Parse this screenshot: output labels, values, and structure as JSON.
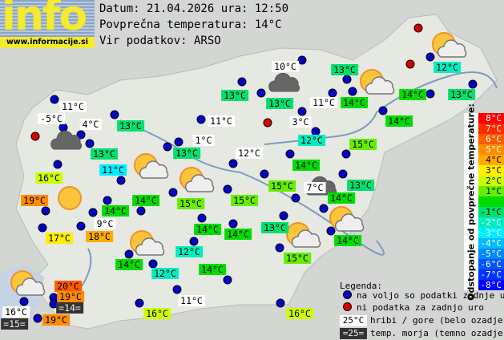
{
  "logo": {
    "word": "info",
    "url": "www.informacije.si"
  },
  "header": {
    "date_line": "Datum: 21.04.2026 ura: 12:50",
    "avg_temp_line": "Povprečna temperatura: 14°C",
    "source_line": "Vir podatkov: ARSO"
  },
  "average_temperature": 14,
  "scale": {
    "title": "Odstopanje od povprečne temperature:",
    "rows": [
      {
        "label": "8°C",
        "color": "#ff0000"
      },
      {
        "label": "7°C",
        "color": "#ff2a00"
      },
      {
        "label": "6°C",
        "color": "#ff5a00"
      },
      {
        "label": "5°C",
        "color": "#ff8c00"
      },
      {
        "label": "4°C",
        "color": "#ffaa00"
      },
      {
        "label": "3°C",
        "color": "#ffee00"
      },
      {
        "label": "2°C",
        "color": "#ccff00"
      },
      {
        "label": "1°C",
        "color": "#66ee00"
      },
      {
        "label": "",
        "color": "#00dd00"
      },
      {
        "label": "-1°C",
        "color": "#00e070"
      },
      {
        "label": "-2°C",
        "color": "#00eec0"
      },
      {
        "label": "-3°C",
        "color": "#00eeff"
      },
      {
        "label": "-4°C",
        "color": "#00bbff"
      },
      {
        "label": "-5°C",
        "color": "#0088ff"
      },
      {
        "label": "-6°C",
        "color": "#0055ff"
      },
      {
        "label": "-7°C",
        "color": "#0033ff"
      },
      {
        "label": "-8°C",
        "color": "#0000ff"
      }
    ]
  },
  "legend": {
    "title": "Legenda:",
    "available": "na voljo so podatki zadnje ure",
    "missing": "ni podatka za zadnjo uro",
    "mountain_sample": "25°C",
    "mountain_text": "hribi / gore (belo ozadje)",
    "sea_sample": "=25=",
    "sea_text": "temp. morja (temno ozadje)",
    "available_color": "#0000cc",
    "missing_color": "#dd0000"
  },
  "stations": [
    {
      "text": "10°C",
      "type": "mountain"
    },
    {
      "text": "13°C",
      "type": "normal",
      "dev": -1
    },
    {
      "text": "12°C",
      "type": "normal",
      "dev": -2
    },
    {
      "text": "13°C",
      "type": "normal",
      "dev": -1
    },
    {
      "text": "13°C",
      "type": "normal",
      "dev": -1
    },
    {
      "text": "11°C",
      "type": "mountain"
    },
    {
      "text": "14°C",
      "type": "normal",
      "dev": 0
    },
    {
      "text": "14°C",
      "type": "normal",
      "dev": 0
    },
    {
      "text": "13°C",
      "type": "normal",
      "dev": -1
    },
    {
      "text": "11°C",
      "type": "mountain"
    },
    {
      "text": "-5°C",
      "type": "mountain"
    },
    {
      "text": "4°C",
      "type": "mountain"
    },
    {
      "text": "13°C",
      "type": "normal",
      "dev": -1
    },
    {
      "text": "11°C",
      "type": "mountain"
    },
    {
      "text": "3°C",
      "type": "mountain"
    },
    {
      "text": "14°C",
      "type": "normal",
      "dev": 0
    },
    {
      "text": "1°C",
      "type": "mountain"
    },
    {
      "text": "12°C",
      "type": "normal",
      "dev": -2
    },
    {
      "text": "15°C",
      "type": "normal",
      "dev": 1
    },
    {
      "text": "13°C",
      "type": "normal",
      "dev": -1
    },
    {
      "text": "13°C",
      "type": "normal",
      "dev": -1
    },
    {
      "text": "12°C",
      "type": "mountain"
    },
    {
      "text": "14°C",
      "type": "normal",
      "dev": 0
    },
    {
      "text": "11°C",
      "type": "normal",
      "dev": -3
    },
    {
      "text": "16°C",
      "type": "normal",
      "dev": 2
    },
    {
      "text": "15°C",
      "type": "normal",
      "dev": 1
    },
    {
      "text": "7°C",
      "type": "mountain"
    },
    {
      "text": "13°C",
      "type": "normal",
      "dev": -1
    },
    {
      "text": "19°C",
      "type": "normal",
      "dev": 5
    },
    {
      "text": "14°C",
      "type": "normal",
      "dev": 0
    },
    {
      "text": "15°C",
      "type": "normal",
      "dev": 1
    },
    {
      "text": "15°C",
      "type": "normal",
      "dev": 1
    },
    {
      "text": "14°C",
      "type": "normal",
      "dev": 0
    },
    {
      "text": "14°C",
      "type": "normal",
      "dev": 0
    },
    {
      "text": "9°C",
      "type": "mountain"
    },
    {
      "text": "14°C",
      "type": "normal",
      "dev": 0
    },
    {
      "text": "14°C",
      "type": "normal",
      "dev": 0
    },
    {
      "text": "13°C",
      "type": "normal",
      "dev": -1
    },
    {
      "text": "14°C",
      "type": "normal",
      "dev": 0
    },
    {
      "text": "17°C",
      "type": "normal",
      "dev": 3
    },
    {
      "text": "18°C",
      "type": "normal",
      "dev": 4
    },
    {
      "text": "12°C",
      "type": "normal",
      "dev": -2
    },
    {
      "text": "15°C",
      "type": "normal",
      "dev": 1
    },
    {
      "text": "14°C",
      "type": "normal",
      "dev": 0
    },
    {
      "text": "14°C",
      "type": "normal",
      "dev": 0
    },
    {
      "text": "12°C",
      "type": "normal",
      "dev": -2
    },
    {
      "text": "20°C",
      "type": "normal",
      "dev": 6
    },
    {
      "text": "19°C",
      "type": "normal",
      "dev": 5
    },
    {
      "text": "=14=",
      "type": "sea"
    },
    {
      "text": "16°C",
      "type": "mountain"
    },
    {
      "text": "=15=",
      "type": "sea"
    },
    {
      "text": "19°C",
      "type": "normal",
      "dev": 5
    },
    {
      "text": "11°C",
      "type": "mountain"
    },
    {
      "text": "16°C",
      "type": "normal",
      "dev": 2
    },
    {
      "text": "16°C",
      "type": "normal",
      "dev": 2
    }
  ],
  "weather_icons": [
    "cloudy",
    "partly-cloudy",
    "partly-cloudy",
    "partly-cloudy",
    "partly-cloudy",
    "partly-cloudy",
    "partly-cloudy",
    "partly-cloudy",
    "partly-cloudy",
    "cloudy",
    "cloudy",
    "sunny"
  ]
}
